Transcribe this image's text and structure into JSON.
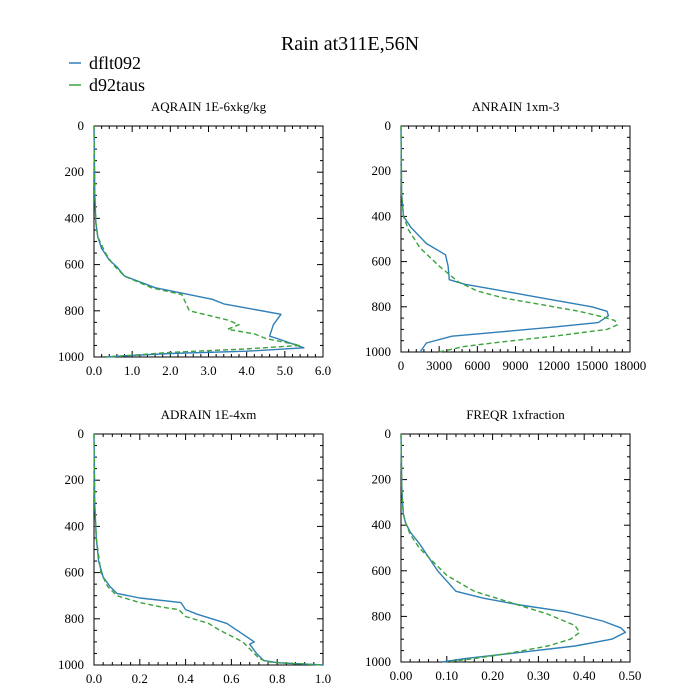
{
  "title": "Rain at311E,56N",
  "colors": {
    "dflt092": "#2f7fb8",
    "d92taus": "#3aa33a"
  },
  "legend": [
    {
      "name": "dflt092",
      "color": "#2f7fb8",
      "dash": "solid"
    },
    {
      "name": "d92taus",
      "color": "#3aa33a",
      "dash": "dashed"
    }
  ],
  "chart_data": [
    {
      "type": "line",
      "title": "AQRAIN  1E-6xkg/kg",
      "xlim": [
        0,
        6
      ],
      "ylim": [
        1000,
        0
      ],
      "y_inverted": true,
      "xticks": [
        0,
        1,
        2,
        3,
        4,
        5,
        6
      ],
      "xtick_labels": [
        "0.0",
        "1.0",
        "2.0",
        "3.0",
        "4.0",
        "5.0",
        "6.0"
      ],
      "yticks": [
        0,
        200,
        400,
        600,
        800,
        1000
      ],
      "ytick_labels": [
        "0",
        "200",
        "400",
        "600",
        "800",
        "1000"
      ],
      "series": [
        {
          "name": "dflt092",
          "color": "#2f7fb8",
          "dash": "solid",
          "x": [
            0,
            0.02,
            0.05,
            0.1,
            0.2,
            0.4,
            0.6,
            0.8,
            1.6,
            3.1,
            3.4,
            4.9,
            4.7,
            4.6,
            4.8,
            5.5,
            4.0,
            2.0,
            0.8,
            0.3
          ],
          "y": [
            0,
            300,
            420,
            480,
            530,
            580,
            610,
            650,
            700,
            750,
            770,
            815,
            860,
            910,
            920,
            960,
            975,
            985,
            995,
            1000
          ]
        },
        {
          "name": "d92taus",
          "color": "#3aa33a",
          "dash": "dashed",
          "x": [
            0,
            0.02,
            0.05,
            0.1,
            0.3,
            0.5,
            0.8,
            1.5,
            2.3,
            2.5,
            3.5,
            3.8,
            3.5,
            4.2,
            4.5,
            5.4,
            4.0,
            2.0,
            0.8,
            0.3
          ],
          "y": [
            0,
            300,
            420,
            480,
            550,
            600,
            650,
            700,
            730,
            800,
            840,
            860,
            880,
            900,
            920,
            950,
            965,
            980,
            995,
            1000
          ]
        }
      ]
    },
    {
      "type": "line",
      "title": "ANRAIN  1xm-3",
      "xlim": [
        0,
        18000
      ],
      "ylim": [
        1000,
        0
      ],
      "y_inverted": true,
      "xticks": [
        0,
        3000,
        6000,
        9000,
        12000,
        15000,
        18000
      ],
      "xtick_labels": [
        "0",
        "3000",
        "6000",
        "9000",
        "12000",
        "15000",
        "18000"
      ],
      "yticks": [
        0,
        200,
        400,
        600,
        800,
        1000
      ],
      "ytick_labels": [
        "0",
        "200",
        "400",
        "600",
        "800",
        "1000"
      ],
      "series": [
        {
          "name": "dflt092",
          "color": "#2f7fb8",
          "dash": "solid",
          "x": [
            0,
            50,
            200,
            800,
            2000,
            3500,
            3700,
            3800,
            5000,
            7000,
            9000,
            11000,
            13000,
            15000,
            16200,
            16300,
            15500,
            12000,
            8000,
            4000,
            2000,
            1500
          ],
          "y": [
            0,
            300,
            400,
            450,
            520,
            570,
            620,
            680,
            700,
            720,
            740,
            760,
            780,
            800,
            820,
            840,
            870,
            890,
            910,
            930,
            960,
            1000
          ]
        },
        {
          "name": "d92taus",
          "color": "#3aa33a",
          "dash": "dashed",
          "x": [
            0,
            50,
            200,
            600,
            1500,
            3000,
            4500,
            6000,
            8000,
            10000,
            12000,
            14000,
            15500,
            16800,
            17000,
            16200,
            12000,
            8000,
            5000,
            3000
          ],
          "y": [
            0,
            300,
            400,
            460,
            540,
            620,
            690,
            730,
            760,
            780,
            800,
            820,
            840,
            860,
            880,
            900,
            930,
            955,
            975,
            1000
          ]
        }
      ]
    },
    {
      "type": "line",
      "title": "ADRAIN  1E-4xm",
      "xlim": [
        0,
        1
      ],
      "ylim": [
        1000,
        0
      ],
      "y_inverted": true,
      "xticks": [
        0,
        0.2,
        0.4,
        0.6,
        0.8,
        1.0
      ],
      "xtick_labels": [
        "0.0",
        "0.2",
        "0.4",
        "0.6",
        "0.8",
        "1.0"
      ],
      "yticks": [
        0,
        200,
        400,
        600,
        800,
        1000
      ],
      "ytick_labels": [
        "0",
        "200",
        "400",
        "600",
        "800",
        "1000"
      ],
      "series": [
        {
          "name": "dflt092",
          "color": "#2f7fb8",
          "dash": "solid",
          "x": [
            0,
            0.003,
            0.01,
            0.02,
            0.04,
            0.07,
            0.1,
            0.2,
            0.38,
            0.4,
            0.45,
            0.58,
            0.7,
            0.68,
            0.71,
            0.74,
            0.8,
            0.9,
            1.0
          ],
          "y": [
            0,
            300,
            450,
            550,
            620,
            660,
            690,
            710,
            730,
            760,
            780,
            820,
            900,
            910,
            950,
            980,
            990,
            995,
            1000
          ]
        },
        {
          "name": "d92taus",
          "color": "#3aa33a",
          "dash": "dashed",
          "x": [
            0,
            0.003,
            0.01,
            0.03,
            0.06,
            0.1,
            0.2,
            0.3,
            0.37,
            0.4,
            0.5,
            0.55,
            0.65,
            0.7,
            0.72,
            0.75,
            0.8,
            0.9,
            1.0
          ],
          "y": [
            0,
            300,
            450,
            600,
            660,
            700,
            730,
            750,
            760,
            790,
            820,
            850,
            900,
            950,
            970,
            985,
            990,
            995,
            1000
          ]
        }
      ]
    },
    {
      "type": "line",
      "title": "FREQR  1xfraction",
      "xlim": [
        0,
        0.5
      ],
      "ylim": [
        1000,
        0
      ],
      "y_inverted": true,
      "xticks": [
        0,
        0.1,
        0.2,
        0.3,
        0.4,
        0.5
      ],
      "xtick_labels": [
        "0.00",
        "0.10",
        "0.20",
        "0.30",
        "0.40",
        "0.50"
      ],
      "yticks": [
        0,
        200,
        400,
        600,
        800,
        1000
      ],
      "ytick_labels": [
        "0",
        "200",
        "400",
        "600",
        "800",
        "1000"
      ],
      "series": [
        {
          "name": "dflt092",
          "color": "#2f7fb8",
          "dash": "solid",
          "x": [
            0,
            0.002,
            0.005,
            0.01,
            0.02,
            0.04,
            0.06,
            0.08,
            0.12,
            0.18,
            0.26,
            0.36,
            0.44,
            0.48,
            0.49,
            0.46,
            0.38,
            0.25,
            0.14,
            0.09
          ],
          "y": [
            0,
            250,
            350,
            390,
            430,
            480,
            540,
            600,
            690,
            720,
            750,
            780,
            820,
            850,
            870,
            900,
            930,
            960,
            985,
            1000
          ]
        },
        {
          "name": "d92taus",
          "color": "#3aa33a",
          "dash": "dashed",
          "x": [
            0,
            0.002,
            0.005,
            0.01,
            0.02,
            0.04,
            0.07,
            0.1,
            0.16,
            0.24,
            0.32,
            0.38,
            0.39,
            0.37,
            0.32,
            0.24,
            0.16,
            0.1
          ],
          "y": [
            0,
            250,
            350,
            390,
            440,
            500,
            560,
            620,
            690,
            740,
            790,
            840,
            870,
            900,
            930,
            960,
            985,
            1000
          ]
        }
      ]
    }
  ]
}
